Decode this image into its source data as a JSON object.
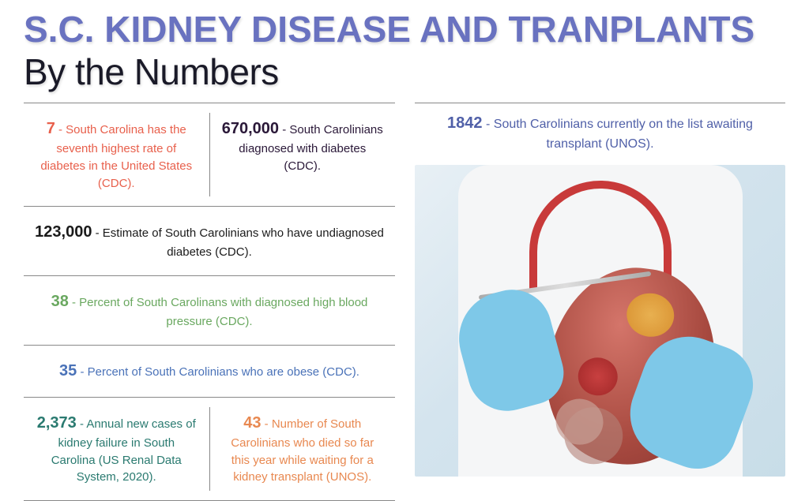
{
  "title": {
    "bold_part": "S.C. KIDNEY DISEASE AND TRANPLANTS",
    "light_part": "By the Numbers",
    "bold_color": "#6972c0",
    "light_color": "#1a1a28"
  },
  "colors": {
    "orange_red": "#e8604c",
    "dark_purple": "#2a1838",
    "near_black": "#1a1a1a",
    "green": "#6aa860",
    "blue": "#4a72b8",
    "teal": "#2a7a70",
    "orange": "#e88850",
    "indigo": "#5060a8",
    "divider": "#888888"
  },
  "left_stats": [
    {
      "layout": "split",
      "cells": [
        {
          "num": "7",
          "text": " - South Carolina has the seventh highest rate of diabetes in the United States (CDC).",
          "color_key": "orange_red"
        },
        {
          "num": "670,000",
          "text": " - South Carolinians diagnosed with diabetes (CDC).",
          "color_key": "dark_purple"
        }
      ]
    },
    {
      "layout": "full",
      "cells": [
        {
          "num": "123,000",
          "text": " - Estimate of South Carolinians who have undiagnosed diabetes (CDC).",
          "color_key": "near_black"
        }
      ]
    },
    {
      "layout": "full",
      "cells": [
        {
          "num": "38",
          "text": " - Percent of South Carolinans with diagnosed high blood pressure (CDC).",
          "color_key": "green"
        }
      ]
    },
    {
      "layout": "full",
      "cells": [
        {
          "num": "35",
          "text": " - Percent of South Carolinians who are obese (CDC).",
          "color_key": "blue"
        }
      ]
    },
    {
      "layout": "split",
      "cells": [
        {
          "num": "2,373",
          "text": " - Annual new cases of kidney failure in South Carolina (US Renal Data System, 2020).",
          "color_key": "teal"
        },
        {
          "num": "43",
          "text": " - Number of South Carolinians who died so far this year while waiting for a kidney transplant (UNOS).",
          "color_key": "orange"
        }
      ]
    }
  ],
  "right_stat": {
    "num": "1842",
    "text": " - South Carolinians currently on the list awaiting transplant (UNOS).",
    "color_key": "indigo"
  },
  "image_alt": "Medical professional in white coat with red stethoscope holding anatomical kidney model with blue-gloved hands and forceps"
}
